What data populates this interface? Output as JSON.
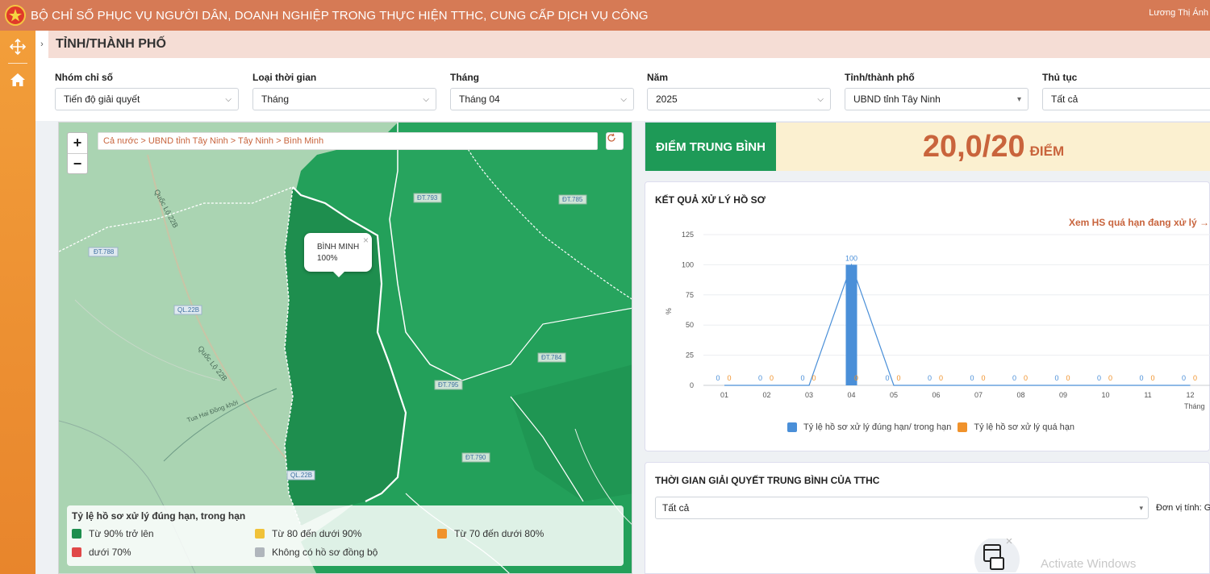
{
  "header": {
    "title": "BỘ CHỈ SỐ PHỤC VỤ NGƯỜI DÂN, DOANH NGHIỆP TRONG THỰC HIỆN TTHC, CUNG CẤP DỊCH VỤ CÔNG",
    "user": "Lương Thị Ánh"
  },
  "page": {
    "title": "TỈNH/THÀNH PHỐ"
  },
  "filters": [
    {
      "label": "Nhóm chỉ số",
      "value": "Tiến độ giải quyết"
    },
    {
      "label": "Loại thời gian",
      "value": "Tháng"
    },
    {
      "label": "Tháng",
      "value": "Tháng 04"
    },
    {
      "label": "Năm",
      "value": "2025"
    },
    {
      "label": "Tỉnh/thành phố",
      "value": "UBND tỉnh Tây Ninh"
    },
    {
      "label": "Thủ tục",
      "value": "Tất cả"
    }
  ],
  "map": {
    "breadcrumb": "Cả nước > UBND tỉnh Tây Ninh > Tây Ninh > Bình Minh",
    "zoom_in": "+",
    "zoom_out": "−",
    "popup": {
      "name": "BÌNH MINH",
      "value": "100%",
      "close": "×"
    },
    "road_labels": [
      "ĐT.788",
      "QL.22B",
      "Quốc Lộ 22B",
      "Quốc Lộ 22B",
      "ĐT.793",
      "ĐT.785",
      "ĐT.784",
      "ĐT.795",
      "ĐT.790",
      "QL.22B",
      "Tua Hai Đồng khởi"
    ],
    "legend": {
      "title": "Tỷ lệ hồ sơ xử lý đúng hạn, trong hạn",
      "items": [
        {
          "label": "Từ 90% trở lên",
          "color": "#1e8e4e"
        },
        {
          "label": "Từ 80 đến dưới 90%",
          "color": "#f0c239"
        },
        {
          "label": "Từ 70 đến dưới 80%",
          "color": "#f0922b"
        },
        {
          "label": "dưới 70%",
          "color": "#e04848"
        },
        {
          "label": "Không có hồ sơ đồng bộ",
          "color": "#b0b6bc"
        }
      ]
    }
  },
  "score": {
    "label": "ĐIỂM TRUNG BÌNH",
    "value": "20,0/20",
    "unit": "ĐIỂM"
  },
  "results": {
    "title": "KẾT QUẢ XỬ LÝ HỒ SƠ",
    "link": "Xem HS quá hạn đang xử lý →"
  },
  "chart_data": {
    "type": "bar",
    "title": "KẾT QUẢ XỬ LÝ HỒ SƠ",
    "xlabel": "Tháng",
    "ylabel": "%",
    "ylim": [
      0,
      125
    ],
    "yticks": [
      0,
      25,
      50,
      75,
      100,
      125
    ],
    "categories": [
      "01",
      "02",
      "03",
      "04",
      "05",
      "06",
      "07",
      "08",
      "09",
      "10",
      "11",
      "12"
    ],
    "series": [
      {
        "name": "Tỷ lệ hồ sơ xử lý đúng hạn/ trong hạn",
        "color": "#4a8fd8",
        "values": [
          0,
          0,
          0,
          100,
          0,
          0,
          0,
          0,
          0,
          0,
          0,
          0
        ]
      },
      {
        "name": "Tỷ lệ hồ sơ xử lý quá hạn",
        "color": "#f0922b",
        "values": [
          0,
          0,
          0,
          0,
          0,
          0,
          0,
          0,
          0,
          0,
          0,
          0
        ]
      }
    ]
  },
  "time": {
    "title": "THỜI GIAN GIẢI QUYẾT TRUNG BÌNH CỦA TTHC",
    "select": "Tất cả",
    "unit": "Đơn vị tính: Giờ"
  },
  "watermark": "Activate Windows"
}
